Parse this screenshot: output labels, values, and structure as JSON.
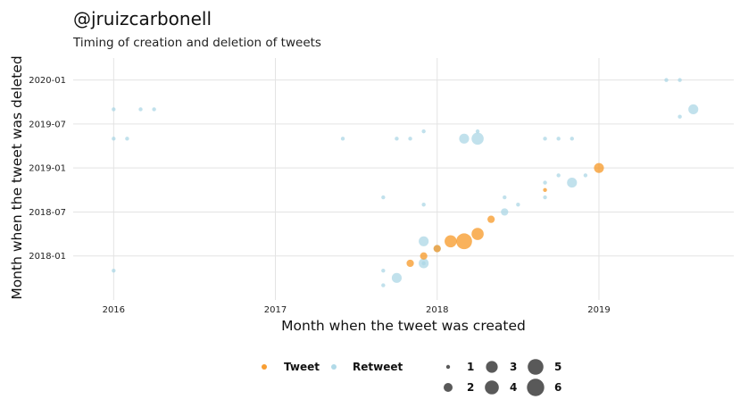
{
  "colors": {
    "tweet": "#f7941d",
    "retweet": "#a9d6e5",
    "size_key": "#222222",
    "grid": "#e3e3e3"
  },
  "chart_data": {
    "type": "scatter",
    "title": "@jruizcarbonell",
    "subtitle": "Timing of creation and deletion of tweets",
    "xlabel": "Month when the tweet was created",
    "ylabel": "Month when the tweet was deleted",
    "x_ticks": [
      "2016",
      "2017",
      "2018",
      "2019"
    ],
    "y_ticks": [
      "2018-01",
      "2018-07",
      "2019-01",
      "2019-07",
      "2020-01"
    ],
    "xlim": [
      "2015-10",
      "2019-11"
    ],
    "ylim": [
      "2017-07",
      "2020-04"
    ],
    "grid": true,
    "legend_position": "bottom",
    "legend": {
      "type_entries": [
        {
          "label": "Tweet",
          "color": "#f7941d"
        },
        {
          "label": "Retweet",
          "color": "#a9d6e5"
        }
      ],
      "size_entries": [
        "1",
        "2",
        "3",
        "4",
        "5",
        "6"
      ]
    },
    "series": [
      {
        "name": "Tweet",
        "color": "#f7941d",
        "points": [
          {
            "x": "2017-11",
            "y": "2017-12",
            "size": 2
          },
          {
            "x": "2017-12",
            "y": "2018-01",
            "size": 2
          },
          {
            "x": "2018-01",
            "y": "2018-02",
            "size": 2
          },
          {
            "x": "2018-02",
            "y": "2018-03",
            "size": 4
          },
          {
            "x": "2018-03",
            "y": "2018-03",
            "size": 6
          },
          {
            "x": "2018-04",
            "y": "2018-04",
            "size": 4
          },
          {
            "x": "2018-05",
            "y": "2018-06",
            "size": 2
          },
          {
            "x": "2018-09",
            "y": "2018-10",
            "size": 1
          },
          {
            "x": "2019-01",
            "y": "2019-01",
            "size": 3
          }
        ]
      },
      {
        "name": "Retweet",
        "color": "#a9d6e5",
        "points": [
          {
            "x": "2016-01",
            "y": "2019-09",
            "size": 1
          },
          {
            "x": "2016-03",
            "y": "2019-09",
            "size": 1
          },
          {
            "x": "2016-04",
            "y": "2019-09",
            "size": 1
          },
          {
            "x": "2016-01",
            "y": "2019-05",
            "size": 1
          },
          {
            "x": "2016-02",
            "y": "2019-05",
            "size": 1
          },
          {
            "x": "2016-01",
            "y": "2017-11",
            "size": 1
          },
          {
            "x": "2017-06",
            "y": "2019-05",
            "size": 1
          },
          {
            "x": "2017-10",
            "y": "2019-05",
            "size": 1
          },
          {
            "x": "2017-11",
            "y": "2019-05",
            "size": 1
          },
          {
            "x": "2017-12",
            "y": "2019-06",
            "size": 1
          },
          {
            "x": "2018-03",
            "y": "2019-05",
            "size": 3
          },
          {
            "x": "2018-04",
            "y": "2019-05",
            "size": 4
          },
          {
            "x": "2018-04",
            "y": "2019-06",
            "size": 1
          },
          {
            "x": "2018-09",
            "y": "2019-05",
            "size": 1
          },
          {
            "x": "2018-10",
            "y": "2019-05",
            "size": 1
          },
          {
            "x": "2018-11",
            "y": "2019-05",
            "size": 1
          },
          {
            "x": "2017-09",
            "y": "2018-09",
            "size": 1
          },
          {
            "x": "2017-12",
            "y": "2018-08",
            "size": 1
          },
          {
            "x": "2018-06",
            "y": "2018-09",
            "size": 1
          },
          {
            "x": "2018-07",
            "y": "2018-08",
            "size": 1
          },
          {
            "x": "2018-09",
            "y": "2018-09",
            "size": 1
          },
          {
            "x": "2018-09",
            "y": "2018-11",
            "size": 1
          },
          {
            "x": "2018-10",
            "y": "2018-12",
            "size": 1
          },
          {
            "x": "2018-11",
            "y": "2018-11",
            "size": 3
          },
          {
            "x": "2018-12",
            "y": "2018-12",
            "size": 1
          },
          {
            "x": "2018-06",
            "y": "2018-07",
            "size": 2
          },
          {
            "x": "2017-12",
            "y": "2018-03",
            "size": 3
          },
          {
            "x": "2018-01",
            "y": "2018-02",
            "size": 2
          },
          {
            "x": "2017-12",
            "y": "2017-12",
            "size": 3
          },
          {
            "x": "2017-12",
            "y": "2017-12",
            "size": 1
          },
          {
            "x": "2017-09",
            "y": "2017-11",
            "size": 1
          },
          {
            "x": "2017-10",
            "y": "2017-10",
            "size": 3
          },
          {
            "x": "2017-09",
            "y": "2017-09",
            "size": 1
          },
          {
            "x": "2019-06",
            "y": "2020-01",
            "size": 1
          },
          {
            "x": "2019-07",
            "y": "2020-01",
            "size": 1
          },
          {
            "x": "2019-08",
            "y": "2019-09",
            "size": 3
          },
          {
            "x": "2019-07",
            "y": "2019-08",
            "size": 1
          }
        ]
      }
    ]
  }
}
